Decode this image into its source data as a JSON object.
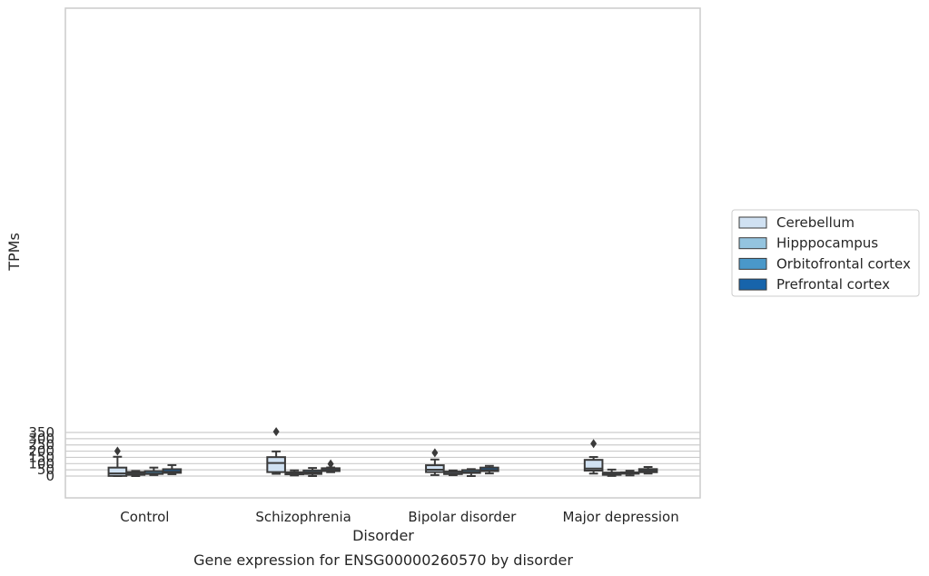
{
  "chart_data": {
    "type": "box",
    "title": "Gene expression for ENSG00000260570 by disorder",
    "xlabel": "Disorder",
    "ylabel": "TPMs",
    "ylim": [
      -17,
      376
    ],
    "yticks": [
      0,
      50,
      100,
      150,
      200,
      250,
      300,
      350
    ],
    "categories": [
      "Control",
      "Schizophrenia",
      "Bipolar disorder",
      "Major depression"
    ],
    "legend_position": "right",
    "grid": true,
    "series": [
      {
        "name": "Cerebellum",
        "color": "#d0e1f2",
        "boxes": [
          {
            "whislo": 0,
            "q1": 1,
            "med": 21,
            "q3": 68,
            "whishi": 155,
            "fliers": [
              201
            ]
          },
          {
            "whislo": 18,
            "q1": 32,
            "med": 105,
            "q3": 152,
            "whishi": 198,
            "fliers": [
              357
            ]
          },
          {
            "whislo": 8,
            "q1": 32,
            "med": 51,
            "q3": 87,
            "whishi": 133,
            "fliers": [
              187
            ]
          },
          {
            "whislo": 20,
            "q1": 44,
            "med": 60,
            "q3": 130,
            "whishi": 153,
            "fliers": [
              261
            ]
          }
        ]
      },
      {
        "name": "Hipppocampus",
        "color": "#94c4df",
        "boxes": [
          {
            "whislo": 0,
            "q1": 10,
            "med": 23,
            "q3": 33,
            "whishi": 41,
            "fliers": []
          },
          {
            "whislo": 5,
            "q1": 14,
            "med": 20,
            "q3": 31,
            "whishi": 46,
            "fliers": []
          },
          {
            "whislo": 7,
            "q1": 16,
            "med": 21,
            "q3": 36,
            "whishi": 45,
            "fliers": []
          },
          {
            "whislo": 1,
            "q1": 10,
            "med": 23,
            "q3": 28,
            "whishi": 52,
            "fliers": []
          }
        ]
      },
      {
        "name": "Orbitofrontal cortex",
        "color": "#4a98c9",
        "boxes": [
          {
            "whislo": 8,
            "q1": 17,
            "med": 20,
            "q3": 39,
            "whishi": 68,
            "fliers": []
          },
          {
            "whislo": 0,
            "q1": 17,
            "med": 29,
            "q3": 45,
            "whishi": 65,
            "fliers": []
          },
          {
            "whislo": 0,
            "q1": 25,
            "med": 31,
            "q3": 48,
            "whishi": 56,
            "fliers": []
          },
          {
            "whislo": 5,
            "q1": 19,
            "med": 24,
            "q3": 30,
            "whishi": 43,
            "fliers": []
          }
        ]
      },
      {
        "name": "Prefrontal cortex",
        "color": "#1764ab",
        "boxes": [
          {
            "whislo": 15,
            "q1": 26,
            "med": 35,
            "q3": 55,
            "whishi": 88,
            "fliers": []
          },
          {
            "whislo": 31,
            "q1": 40,
            "med": 49,
            "q3": 63,
            "whishi": 69,
            "fliers": [
              98
            ]
          },
          {
            "whislo": 21,
            "q1": 40,
            "med": 48,
            "q3": 68,
            "whishi": 82,
            "fliers": []
          },
          {
            "whislo": 20,
            "q1": 31,
            "med": 43,
            "q3": 56,
            "whishi": 73,
            "fliers": []
          }
        ]
      }
    ]
  }
}
